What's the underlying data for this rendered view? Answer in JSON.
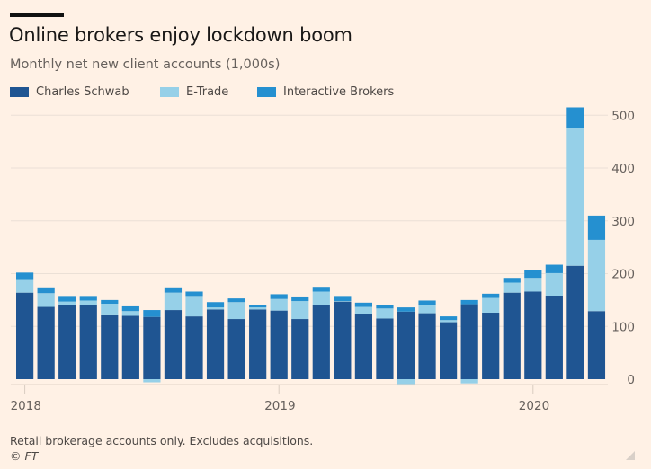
{
  "header": {
    "title": "Online brokers enjoy lockdown boom",
    "subtitle": "Monthly net new client accounts (1,000s)"
  },
  "legend": [
    {
      "label": "Charles Schwab",
      "color": "#1f5592"
    },
    {
      "label": "E-Trade",
      "color": "#96d0e8"
    },
    {
      "label": "Interactive Brokers",
      "color": "#2590d0"
    }
  ],
  "footer": {
    "note": "Retail brokerage accounts only. Excludes acquisitions.",
    "credit": "© FT"
  },
  "chart_data": {
    "type": "bar",
    "stacked": true,
    "title": "Online brokers enjoy lockdown boom",
    "subtitle": "Monthly net new client accounts (1,000s)",
    "xlabel": "",
    "ylabel": "",
    "ylim": [
      0,
      520
    ],
    "yticks": [
      0,
      100,
      200,
      300,
      400,
      500
    ],
    "y_axis_side": "right",
    "grid": true,
    "legend_position": "top-left",
    "x_tick_labels": [
      {
        "label": "2018",
        "index": 0
      },
      {
        "label": "2019",
        "index": 12
      },
      {
        "label": "2020",
        "index": 24
      }
    ],
    "categories": [
      "Jan 2018",
      "Feb 2018",
      "Mar 2018",
      "Apr 2018",
      "May 2018",
      "Jun 2018",
      "Jul 2018",
      "Aug 2018",
      "Sep 2018",
      "Oct 2018",
      "Nov 2018",
      "Dec 2018",
      "Jan 2019",
      "Feb 2019",
      "Mar 2019",
      "Apr 2019",
      "May 2019",
      "Jun 2019",
      "Jul 2019",
      "Aug 2019",
      "Sep 2019",
      "Oct 2019",
      "Nov 2019",
      "Dec 2019",
      "Jan 2020",
      "Feb 2020",
      "Mar 2020",
      "Apr 2020"
    ],
    "series": [
      {
        "name": "Charles Schwab",
        "color": "#1f5592",
        "values": [
          164,
          137,
          140,
          141,
          121,
          120,
          118,
          131,
          119,
          132,
          114,
          132,
          130,
          114,
          140,
          147,
          123,
          115,
          128,
          125,
          108,
          142,
          126,
          164,
          166,
          158,
          215,
          129
        ]
      },
      {
        "name": "E-Trade",
        "color": "#96d0e8",
        "values": [
          24,
          26,
          7,
          8,
          22,
          9,
          -6,
          33,
          37,
          4,
          32,
          4,
          22,
          34,
          26,
          1,
          14,
          19,
          -12,
          16,
          4,
          -8,
          28,
          19,
          26,
          43,
          260,
          135
        ]
      },
      {
        "name": "Interactive Brokers",
        "color": "#2590d0",
        "values": [
          14,
          11,
          9,
          7,
          7,
          9,
          13,
          10,
          10,
          10,
          7,
          4,
          9,
          7,
          9,
          8,
          8,
          7,
          8,
          8,
          7,
          8,
          8,
          9,
          15,
          16,
          40,
          46
        ]
      }
    ],
    "source": "Retail brokerage accounts only. Excludes acquisitions.",
    "credit": "© FT"
  }
}
